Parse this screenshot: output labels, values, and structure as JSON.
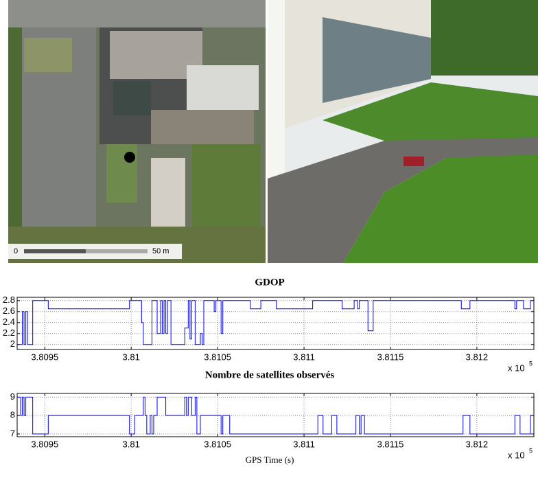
{
  "map": {
    "scale_start": "0",
    "scale_end": "50 m"
  },
  "chart_data": [
    {
      "type": "step",
      "title": "GDOP",
      "color": "#0000ff",
      "grid": true,
      "xlim": [
        3.80934,
        3.81233
      ],
      "ylim": [
        1.91,
        2.86
      ],
      "xticks": [
        3.8095,
        3.81,
        3.8105,
        3.811,
        3.8115,
        3.812
      ],
      "yticks": [
        2,
        2.2,
        2.4,
        2.6,
        2.8
      ],
      "x_scale_note": {
        "base": "x 10",
        "power": "5"
      },
      "x": [
        3.80934,
        3.80937,
        3.80938,
        3.80939,
        3.8094,
        3.80943,
        3.80952,
        3.80999,
        3.81006,
        3.81007,
        3.81012,
        3.81015,
        3.81017,
        3.81018,
        3.81019,
        3.8102,
        3.81021,
        3.81023,
        3.81031,
        3.81033,
        3.81034,
        3.81035,
        3.81037,
        3.8104,
        3.81041,
        3.81042,
        3.81048,
        3.81049,
        3.81052,
        3.81053,
        3.81069,
        3.81075,
        3.81084,
        3.81105,
        3.81122,
        3.81129,
        3.81131,
        3.81132,
        3.81137,
        3.8114,
        3.81191,
        3.81196,
        3.81222,
        3.81223,
        3.81227,
        3.81231
      ],
      "values": [
        2.0,
        2.6,
        2.0,
        2.6,
        2.0,
        2.8,
        2.65,
        2.8,
        2.4,
        2.0,
        2.8,
        2.2,
        2.8,
        2.2,
        2.8,
        2.2,
        2.8,
        2.0,
        2.3,
        2.8,
        2.1,
        2.8,
        2.0,
        2.2,
        2.0,
        2.8,
        2.6,
        2.8,
        2.2,
        2.8,
        2.65,
        2.8,
        2.65,
        2.8,
        2.65,
        2.8,
        2.65,
        2.8,
        2.25,
        2.8,
        2.65,
        2.8,
        2.65,
        2.8,
        2.65,
        2.8
      ]
    },
    {
      "type": "step",
      "title": "Nombre de satellites observés",
      "color": "#0000ff",
      "grid": true,
      "xlabel": "GPS Time (s)",
      "xlim": [
        3.80934,
        3.81233
      ],
      "ylim": [
        6.85,
        9.2
      ],
      "xticks": [
        3.8095,
        3.81,
        3.8105,
        3.811,
        3.8115,
        3.812
      ],
      "yticks": [
        7,
        8,
        9
      ],
      "x_scale_note": {
        "base": "x 10",
        "power": "5"
      },
      "x": [
        3.80934,
        3.80936,
        3.80937,
        3.80938,
        3.80939,
        3.80943,
        3.80952,
        3.80999,
        3.81002,
        3.81007,
        3.81008,
        3.81009,
        3.81011,
        3.81012,
        3.81013,
        3.81015,
        3.8102,
        3.81031,
        3.81032,
        3.81033,
        3.81035,
        3.81037,
        3.81038,
        3.8104,
        3.81052,
        3.81053,
        3.81057,
        3.81108,
        3.81111,
        3.81116,
        3.81119,
        3.8113,
        3.81132,
        3.81133,
        3.81135,
        3.81192,
        3.81196,
        3.81222,
        3.81225,
        3.81231
      ],
      "values": [
        9,
        8,
        9,
        8,
        9,
        7,
        8,
        7,
        8,
        9,
        8,
        7,
        8,
        7,
        8,
        9,
        8,
        9,
        8,
        9,
        8,
        9,
        7,
        8,
        7,
        8,
        7,
        8,
        7,
        8,
        7,
        8,
        7,
        8,
        7,
        8,
        7,
        8,
        7,
        8
      ]
    }
  ]
}
